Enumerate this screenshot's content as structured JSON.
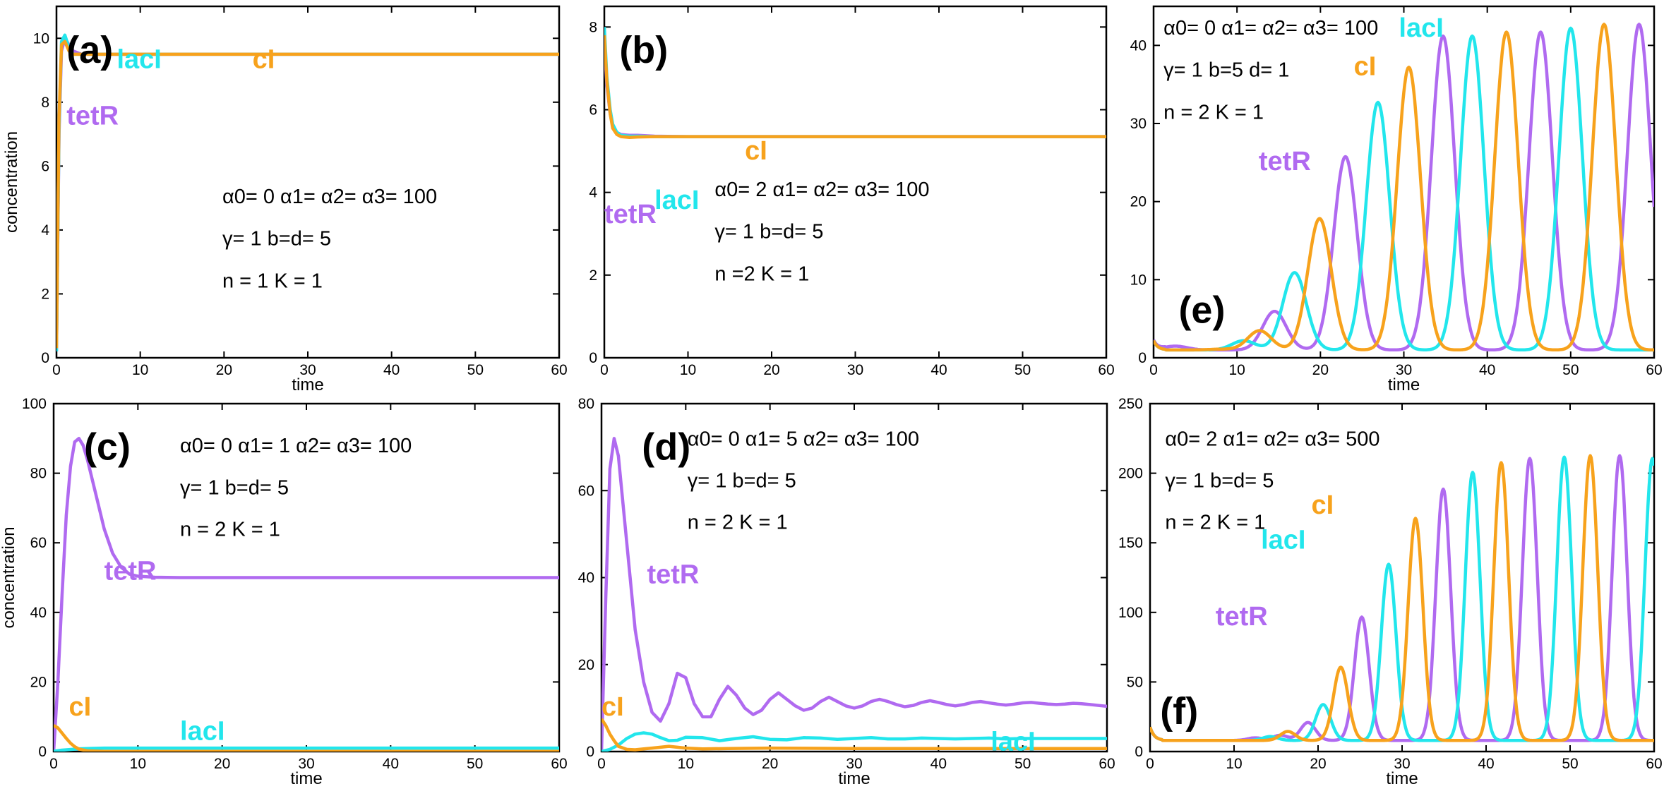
{
  "colors": {
    "tetR": "#b06af0",
    "lacI": "#22e6ec",
    "cI": "#f7a21c"
  },
  "chart_data": [
    {
      "id": "a",
      "type": "line",
      "panel_label": "(a)",
      "xlabel": "time",
      "ylabel": "concentration",
      "xlim": [
        0,
        60
      ],
      "ylim": [
        0,
        11
      ],
      "xticks": [
        0,
        10,
        20,
        30,
        40,
        50,
        60
      ],
      "yticks": [
        0,
        2,
        4,
        6,
        8,
        10
      ],
      "grid": false,
      "series": [
        {
          "name": "tetR",
          "color": "#b06af0",
          "x": [
            0,
            0.3,
            0.6,
            1,
            1.5,
            2,
            3,
            4,
            6,
            10,
            60
          ],
          "values": [
            0.2,
            7,
            9.6,
            10.0,
            9.8,
            9.6,
            9.5,
            9.5,
            9.5,
            9.5,
            9.5
          ]
        },
        {
          "name": "lacI",
          "color": "#22e6ec",
          "x": [
            0,
            0.3,
            0.6,
            1,
            1.5,
            2,
            3,
            4,
            6,
            10,
            60
          ],
          "values": [
            0.2,
            7.2,
            9.9,
            10.1,
            9.7,
            9.5,
            9.5,
            9.5,
            9.5,
            9.5,
            9.5
          ]
        },
        {
          "name": "cI",
          "color": "#f7a21c",
          "x": [
            0,
            0.3,
            0.6,
            1,
            1.5,
            2,
            3,
            4,
            6,
            10,
            60
          ],
          "values": [
            0.3,
            7.5,
            9.8,
            9.9,
            9.6,
            9.5,
            9.5,
            9.5,
            9.5,
            9.5,
            9.5
          ]
        }
      ],
      "series_labels": [
        "lacI",
        "cI",
        "tetR"
      ],
      "params": [
        "α0= 0   α1= α2= α3= 100",
        "γ= 1   b=d= 5",
        "n = 1 K = 1"
      ],
      "boxed": [
        "n = 1"
      ]
    },
    {
      "id": "b",
      "type": "line",
      "panel_label": "(b)",
      "xlabel": "",
      "ylabel": "",
      "xlim": [
        0,
        60
      ],
      "ylim": [
        0,
        8.5
      ],
      "xticks": [
        0,
        10,
        20,
        30,
        40,
        50,
        60
      ],
      "yticks": [
        0,
        2,
        4,
        6,
        8
      ],
      "grid": false,
      "series": [
        {
          "name": "tetR",
          "color": "#b06af0",
          "x": [
            0,
            0.3,
            0.7,
            1,
            1.5,
            2,
            3,
            4,
            6,
            10,
            60
          ],
          "values": [
            7.6,
            6.6,
            5.9,
            5.6,
            5.45,
            5.4,
            5.38,
            5.38,
            5.36,
            5.35,
            5.35
          ]
        },
        {
          "name": "lacI",
          "color": "#22e6ec",
          "x": [
            0,
            0.3,
            0.7,
            1,
            1.5,
            2,
            3,
            4,
            6,
            10,
            60
          ],
          "values": [
            8.0,
            6.8,
            6.0,
            5.65,
            5.45,
            5.38,
            5.36,
            5.36,
            5.35,
            5.35,
            5.35
          ]
        },
        {
          "name": "cI",
          "color": "#f7a21c",
          "x": [
            0,
            0.3,
            0.7,
            1,
            1.5,
            2,
            3,
            4,
            6,
            10,
            60
          ],
          "values": [
            7.8,
            6.7,
            5.9,
            5.55,
            5.4,
            5.35,
            5.33,
            5.34,
            5.35,
            5.35,
            5.35
          ]
        }
      ],
      "series_labels": [
        "cI",
        "lacI",
        "tetR"
      ],
      "params": [
        "α0= 2   α1= α2= α3= 100",
        "γ= 1   b=d= 5",
        "n =2 K = 1"
      ],
      "boxed": [
        "α0= 2"
      ]
    },
    {
      "id": "e",
      "type": "line",
      "panel_label": "(e)",
      "xlabel": "time",
      "ylabel": "",
      "xlim": [
        0,
        60
      ],
      "ylim": [
        0,
        45
      ],
      "xticks": [
        0,
        10,
        20,
        30,
        40,
        50,
        60
      ],
      "yticks": [
        0,
        10,
        20,
        30,
        40
      ],
      "grid": false,
      "series": [
        {
          "name": "tetR",
          "color": "#b06af0",
          "period": 11.7,
          "base": 1.0,
          "peaks": [
            [
              2.6,
              1.5
            ],
            [
              14.5,
              6
            ],
            [
              23.0,
              26
            ],
            [
              34.7,
              41.5
            ],
            [
              46.4,
              42
            ],
            [
              58.2,
              43
            ]
          ]
        },
        {
          "name": "lacI",
          "color": "#22e6ec",
          "period": 11.7,
          "base": 1.0,
          "peaks": [
            [
              6.3,
              1.0
            ],
            [
              10.8,
              2.2
            ],
            [
              16.9,
              11
            ],
            [
              26.9,
              33
            ],
            [
              38.2,
              41.5
            ],
            [
              50.0,
              42.5
            ]
          ]
        },
        {
          "name": "cI",
          "color": "#f7a21c",
          "period": 11.7,
          "base": 1.0,
          "peaks": [
            [
              8.0,
              1.1
            ],
            [
              12.7,
              3.5
            ],
            [
              19.9,
              18
            ],
            [
              30.6,
              37.5
            ],
            [
              42.3,
              42
            ],
            [
              54.0,
              43
            ]
          ]
        }
      ],
      "series_labels": [
        "lacI",
        "cI",
        "tetR"
      ],
      "params": [
        "α0= 0   α1= α2= α3= 100",
        "γ= 1   b=5 d= 1",
        "n = 2 K = 1"
      ],
      "boxed": [
        "d= 1"
      ]
    },
    {
      "id": "c",
      "type": "line",
      "panel_label": "(c)",
      "xlabel": "time",
      "ylabel": "concentration",
      "xlim": [
        0,
        60
      ],
      "ylim": [
        0,
        100
      ],
      "xticks": [
        0,
        10,
        20,
        30,
        40,
        50,
        60
      ],
      "yticks": [
        0,
        20,
        40,
        60,
        80,
        100
      ],
      "grid": false,
      "series": [
        {
          "name": "tetR",
          "color": "#b06af0",
          "x": [
            0,
            0.5,
            1,
            1.5,
            2,
            2.5,
            3,
            3.5,
            4,
            5,
            6,
            7,
            8,
            9,
            10,
            12,
            15,
            20,
            60
          ],
          "values": [
            0,
            20,
            45,
            68,
            82,
            89,
            90,
            88,
            84,
            74,
            64,
            57,
            53,
            51,
            50.4,
            50.1,
            50,
            50,
            50
          ]
        },
        {
          "name": "lacI",
          "color": "#22e6ec",
          "x": [
            0,
            1,
            3,
            6,
            10,
            60
          ],
          "values": [
            0.1,
            0.4,
            0.8,
            1.0,
            1.0,
            1.0
          ]
        },
        {
          "name": "cI",
          "color": "#f7a21c",
          "x": [
            0,
            0.5,
            1,
            1.5,
            2,
            2.5,
            3,
            4,
            6,
            60
          ],
          "values": [
            7.5,
            6.8,
            5.3,
            3.8,
            2.4,
            1.4,
            0.7,
            0.2,
            0.05,
            0.05
          ]
        }
      ],
      "series_labels": [
        "tetR",
        "cI",
        "lacI"
      ],
      "params": [
        "α0= 0   α1= 1  α2= α3= 100",
        "γ= 1   b=d= 5",
        "n = 2 K = 1"
      ],
      "boxed": [
        "α1= 1"
      ]
    },
    {
      "id": "d",
      "type": "line",
      "panel_label": "(d)",
      "xlabel": "time",
      "ylabel": "",
      "xlim": [
        0,
        60
      ],
      "ylim": [
        0,
        80
      ],
      "xticks": [
        0,
        10,
        20,
        30,
        40,
        50,
        60
      ],
      "yticks": [
        0,
        20,
        40,
        60,
        80
      ],
      "grid": false,
      "series": [
        {
          "name": "tetR",
          "color": "#b06af0",
          "x": [
            0,
            0.5,
            1,
            1.5,
            2,
            3,
            4,
            5,
            6,
            7,
            8,
            9,
            10,
            11,
            12,
            13,
            14,
            15,
            16,
            17,
            18,
            19,
            20,
            21,
            22,
            23,
            24,
            25,
            26,
            27,
            28,
            29,
            30,
            31,
            32,
            33,
            34,
            35,
            36,
            37,
            38,
            39,
            40,
            41,
            42,
            43,
            44,
            45,
            46,
            47,
            48,
            49,
            50,
            51,
            52,
            53,
            54,
            55,
            56,
            57,
            58,
            59,
            60
          ],
          "values": [
            0,
            35,
            65,
            72,
            68,
            48,
            28,
            16,
            9,
            7,
            11,
            18,
            17,
            11,
            8,
            8,
            12,
            15,
            13,
            10,
            8.5,
            9.5,
            12,
            13.5,
            12,
            10.5,
            9.5,
            10,
            11.5,
            12.5,
            11.5,
            10.5,
            10,
            10.5,
            11.5,
            12,
            11.5,
            10.8,
            10.3,
            10.6,
            11.3,
            11.7,
            11.3,
            10.8,
            10.5,
            10.8,
            11.3,
            11.5,
            11.2,
            10.9,
            10.7,
            10.9,
            11.2,
            11.3,
            11.1,
            10.9,
            10.8,
            10.9,
            11.1,
            11.0,
            10.8,
            10.6,
            10.4
          ]
        },
        {
          "name": "lacI",
          "color": "#22e6ec",
          "x": [
            0,
            1,
            2,
            3,
            4,
            5,
            6,
            7,
            8,
            9,
            10,
            12,
            14,
            16,
            18,
            20,
            22,
            24,
            26,
            28,
            30,
            32,
            34,
            36,
            38,
            40,
            42,
            44,
            46,
            48,
            50,
            52,
            54,
            56,
            58,
            60
          ],
          "values": [
            0,
            0.5,
            1.5,
            3,
            4,
            4.3,
            4,
            3.2,
            2.5,
            2.6,
            3.3,
            3.2,
            2.5,
            3.0,
            3.4,
            2.8,
            2.7,
            3.2,
            3.1,
            2.8,
            3.0,
            3.2,
            2.9,
            2.9,
            3.1,
            3.0,
            2.9,
            3.0,
            3.1,
            2.9,
            3.0,
            3.0,
            3.0,
            3.0,
            3.0,
            3.0
          ]
        },
        {
          "name": "cI",
          "color": "#f7a21c",
          "x": [
            0,
            0.5,
            1,
            1.5,
            2,
            3,
            4,
            5,
            6,
            8,
            10,
            12,
            15,
            20,
            30,
            40,
            50,
            60
          ],
          "values": [
            7.5,
            6,
            4,
            2.5,
            1.2,
            0.5,
            0.4,
            0.6,
            0.8,
            1.2,
            0.8,
            0.6,
            0.7,
            0.8,
            0.7,
            0.7,
            0.7,
            0.7
          ]
        }
      ],
      "series_labels": [
        "tetR",
        "cI",
        "lacI"
      ],
      "params": [
        "α0= 0   α1= 5  α2= α3= 100",
        "γ= 1   b=d= 5",
        "n = 2 K = 1"
      ],
      "boxed": [
        "α1= 5"
      ]
    },
    {
      "id": "f",
      "type": "line",
      "panel_label": "(f)",
      "xlabel": "time",
      "ylabel": "",
      "xlim": [
        0,
        60
      ],
      "ylim": [
        0,
        250
      ],
      "xticks": [
        0,
        10,
        20,
        30,
        40,
        50,
        60
      ],
      "yticks": [
        0,
        50,
        100,
        150,
        200,
        250
      ],
      "grid": false,
      "series": [
        {
          "name": "tetR",
          "color": "#b06af0",
          "period": 7.4,
          "base": 8,
          "peaks": [
            [
              12.5,
              10
            ],
            [
              15.5,
              12
            ],
            [
              18.8,
              22
            ],
            [
              25.2,
              99
            ],
            [
              34.9,
              191
            ],
            [
              45.2,
              213
            ],
            [
              55.9,
              215
            ]
          ]
        },
        {
          "name": "lacI",
          "color": "#22e6ec",
          "period": 7.4,
          "base": 8,
          "peaks": [
            [
              14.3,
              11
            ],
            [
              20.6,
              36
            ],
            [
              28.4,
              137
            ],
            [
              38.4,
              203
            ],
            [
              49.3,
              214
            ],
            [
              59.8,
              213
            ]
          ]
        },
        {
          "name": "cI",
          "color": "#f7a21c",
          "period": 7.4,
          "base": 8,
          "peaks": [
            [
              16.4,
              15
            ],
            [
              22.7,
              63
            ],
            [
              31.6,
              170
            ],
            [
              41.8,
              210
            ],
            [
              52.4,
              215
            ]
          ]
        }
      ],
      "series_labels": [
        "cI",
        "lacI",
        "tetR"
      ],
      "params": [
        "α0= 2   α1= α2= α3= 500",
        "γ= 1   b=d= 5",
        "n = 2 K = 1"
      ],
      "boxed": [
        "α1= α2= α3= 500"
      ]
    }
  ]
}
